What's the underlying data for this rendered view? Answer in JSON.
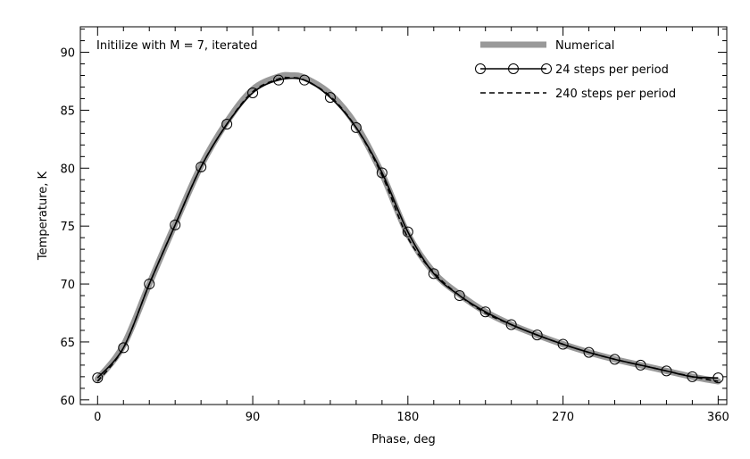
{
  "chart_data": {
    "type": "line",
    "title": "",
    "annotation": "Initilize with M = 7, iterated",
    "xlabel": "Phase, deg",
    "ylabel": "Temperature, K",
    "xlim": [
      -10,
      365
    ],
    "ylim": [
      59.6,
      92.2
    ],
    "xticks": [
      0,
      90,
      180,
      270,
      360
    ],
    "yticks": [
      60,
      65,
      70,
      75,
      80,
      85,
      90
    ],
    "x_minor_step": 15,
    "y_minor_step": 1,
    "grid": false,
    "legend_position": "top-right",
    "series": [
      {
        "name": "Numerical",
        "style": "thick-gray",
        "color": "#999999",
        "x": [
          0,
          15,
          30,
          45,
          60,
          75,
          90,
          105,
          112,
          120,
          135,
          150,
          165,
          180,
          195,
          210,
          225,
          240,
          255,
          270,
          285,
          300,
          315,
          330,
          345,
          360
        ],
        "y": [
          61.8,
          64.7,
          70.0,
          75.2,
          80.2,
          84.0,
          86.8,
          87.9,
          88.0,
          87.8,
          86.4,
          83.7,
          79.5,
          74.3,
          71.0,
          69.1,
          67.6,
          66.5,
          65.6,
          64.8,
          64.1,
          63.5,
          63.0,
          62.5,
          62.0,
          61.6
        ]
      },
      {
        "name": "24 steps per period",
        "style": "solid-with-circles",
        "color": "#000000",
        "x": [
          0,
          15,
          30,
          45,
          60,
          75,
          90,
          105,
          120,
          135,
          150,
          165,
          180,
          195,
          210,
          225,
          240,
          255,
          270,
          285,
          300,
          315,
          330,
          345,
          360
        ],
        "y": [
          61.9,
          64.5,
          70.0,
          75.1,
          80.1,
          83.8,
          86.5,
          87.6,
          87.6,
          86.1,
          83.5,
          79.6,
          74.5,
          70.9,
          69.0,
          67.6,
          66.5,
          65.6,
          64.8,
          64.1,
          63.5,
          63.0,
          62.5,
          62.0,
          61.9
        ]
      },
      {
        "name": "240 steps per period",
        "style": "dashed",
        "color": "#000000",
        "x": [
          0,
          15,
          30,
          45,
          60,
          75,
          90,
          105,
          112,
          120,
          135,
          150,
          165,
          180,
          195,
          210,
          225,
          240,
          255,
          270,
          285,
          300,
          315,
          330,
          345,
          360
        ],
        "y": [
          61.6,
          64.5,
          70.0,
          75.1,
          80.1,
          83.8,
          86.6,
          87.7,
          87.8,
          87.6,
          86.2,
          83.5,
          79.4,
          74.0,
          71.0,
          69.0,
          67.5,
          66.5,
          65.6,
          64.8,
          64.1,
          63.5,
          63.0,
          62.5,
          62.0,
          61.6
        ]
      }
    ]
  }
}
